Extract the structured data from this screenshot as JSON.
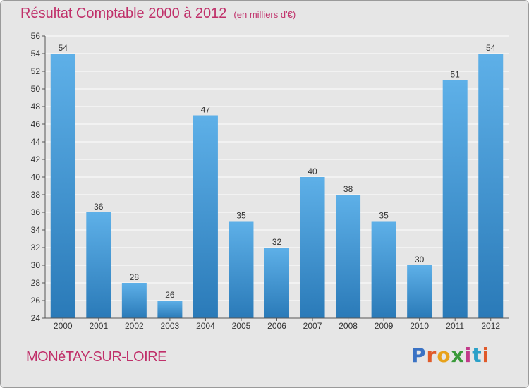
{
  "header": {
    "title": "Résultat Comptable 2000 à 2012",
    "subtitle": "(en milliers d'€)"
  },
  "footer": {
    "city": "MONéTAY-SUR-LOIRE",
    "logo": "Proxiti"
  },
  "colors": {
    "bar_light": "#5eb0e8",
    "bar_dark": "#2a7ab8",
    "title": "#c0306a",
    "background": "#e6e6e6",
    "logo_letters": [
      "#3a72c4",
      "#e05a2a",
      "#e8a21a",
      "#3a9a3a",
      "#c23a8a",
      "#2aa0c8",
      "#e05a2a"
    ]
  },
  "chart_data": {
    "type": "bar",
    "title": "Résultat Comptable 2000 à 2012",
    "subtitle": "(en milliers d'€)",
    "xlabel": "",
    "ylabel": "",
    "categories": [
      "2000",
      "2001",
      "2002",
      "2003",
      "2004",
      "2005",
      "2006",
      "2007",
      "2008",
      "2009",
      "2010",
      "2011",
      "2012"
    ],
    "values": [
      54,
      36,
      28,
      26,
      47,
      35,
      32,
      40,
      38,
      35,
      30,
      51,
      54
    ],
    "ylim": [
      24,
      56
    ],
    "yticks": [
      24,
      26,
      28,
      30,
      32,
      34,
      36,
      38,
      40,
      42,
      44,
      46,
      48,
      50,
      52,
      54,
      56
    ],
    "grid": true,
    "legend": "none"
  }
}
